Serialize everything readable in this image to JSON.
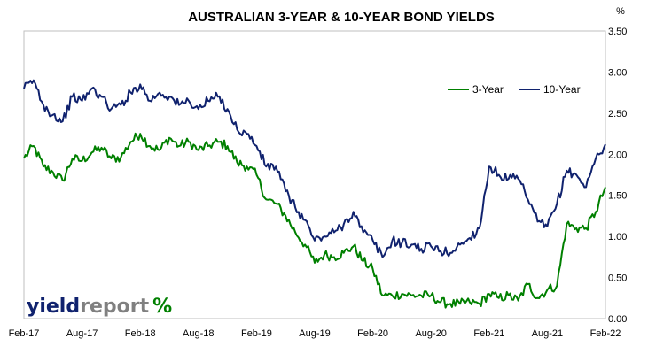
{
  "chart_data": {
    "type": "line",
    "title": "AUSTRALIAN 3-YEAR & 10-YEAR BOND YIELDS",
    "y_unit": "%",
    "ylim": [
      0,
      3.5
    ],
    "y_ticks": [
      "0.00",
      "0.50",
      "1.00",
      "1.50",
      "2.00",
      "2.50",
      "3.00",
      "3.50"
    ],
    "x_ticks": [
      "Feb-17",
      "Aug-17",
      "Feb-18",
      "Aug-18",
      "Feb-19",
      "Aug-19",
      "Feb-20",
      "Aug-20",
      "Feb-21",
      "Aug-21",
      "Feb-22"
    ],
    "xlim": [
      "2017-02",
      "2022-02"
    ],
    "grid": false,
    "legend_position": "top-right",
    "series": [
      {
        "name": "3-Year",
        "color": "#008000",
        "points": [
          [
            "2017-02",
            1.95
          ],
          [
            "2017-03",
            2.1
          ],
          [
            "2017-04",
            1.85
          ],
          [
            "2017-05",
            1.78
          ],
          [
            "2017-06",
            1.68
          ],
          [
            "2017-07",
            1.95
          ],
          [
            "2017-08",
            1.92
          ],
          [
            "2017-09",
            2.02
          ],
          [
            "2017-10",
            2.08
          ],
          [
            "2017-11",
            1.95
          ],
          [
            "2017-12",
            1.96
          ],
          [
            "2018-01",
            2.15
          ],
          [
            "2018-02",
            2.25
          ],
          [
            "2018-03",
            2.1
          ],
          [
            "2018-04",
            2.05
          ],
          [
            "2018-05",
            2.2
          ],
          [
            "2018-06",
            2.1
          ],
          [
            "2018-07",
            2.15
          ],
          [
            "2018-08",
            2.05
          ],
          [
            "2018-09",
            2.1
          ],
          [
            "2018-10",
            2.15
          ],
          [
            "2018-11",
            2.1
          ],
          [
            "2018-12",
            1.9
          ],
          [
            "2019-01",
            1.85
          ],
          [
            "2019-02",
            1.75
          ],
          [
            "2019-03",
            1.45
          ],
          [
            "2019-04",
            1.4
          ],
          [
            "2019-05",
            1.25
          ],
          [
            "2019-06",
            1.05
          ],
          [
            "2019-07",
            0.9
          ],
          [
            "2019-08",
            0.68
          ],
          [
            "2019-09",
            0.78
          ],
          [
            "2019-10",
            0.75
          ],
          [
            "2019-11",
            0.8
          ],
          [
            "2019-12",
            0.88
          ],
          [
            "2020-01",
            0.7
          ],
          [
            "2020-02",
            0.6
          ],
          [
            "2020-03",
            0.28
          ],
          [
            "2020-04",
            0.28
          ],
          [
            "2020-05",
            0.3
          ],
          [
            "2020-06",
            0.28
          ],
          [
            "2020-07",
            0.28
          ],
          [
            "2020-08",
            0.28
          ],
          [
            "2020-09",
            0.2
          ],
          [
            "2020-10",
            0.18
          ],
          [
            "2020-11",
            0.18
          ],
          [
            "2020-12",
            0.2
          ],
          [
            "2021-01",
            0.18
          ],
          [
            "2021-02",
            0.3
          ],
          [
            "2021-03",
            0.25
          ],
          [
            "2021-04",
            0.28
          ],
          [
            "2021-05",
            0.22
          ],
          [
            "2021-06",
            0.42
          ],
          [
            "2021-07",
            0.25
          ],
          [
            "2021-08",
            0.35
          ],
          [
            "2021-09",
            0.4
          ],
          [
            "2021-10",
            1.15
          ],
          [
            "2021-11",
            1.1
          ],
          [
            "2021-12",
            1.1
          ],
          [
            "2022-01",
            1.3
          ],
          [
            "2022-02",
            1.6
          ]
        ]
      },
      {
        "name": "10-Year",
        "color": "#10226E",
        "points": [
          [
            "2017-02",
            2.8
          ],
          [
            "2017-03",
            2.9
          ],
          [
            "2017-04",
            2.6
          ],
          [
            "2017-05",
            2.48
          ],
          [
            "2017-06",
            2.4
          ],
          [
            "2017-07",
            2.7
          ],
          [
            "2017-08",
            2.65
          ],
          [
            "2017-09",
            2.8
          ],
          [
            "2017-10",
            2.7
          ],
          [
            "2017-11",
            2.55
          ],
          [
            "2017-12",
            2.6
          ],
          [
            "2018-01",
            2.75
          ],
          [
            "2018-02",
            2.85
          ],
          [
            "2018-03",
            2.65
          ],
          [
            "2018-04",
            2.75
          ],
          [
            "2018-05",
            2.7
          ],
          [
            "2018-06",
            2.6
          ],
          [
            "2018-07",
            2.65
          ],
          [
            "2018-08",
            2.55
          ],
          [
            "2018-09",
            2.65
          ],
          [
            "2018-10",
            2.7
          ],
          [
            "2018-11",
            2.55
          ],
          [
            "2018-12",
            2.3
          ],
          [
            "2019-01",
            2.25
          ],
          [
            "2019-02",
            2.1
          ],
          [
            "2019-03",
            1.85
          ],
          [
            "2019-04",
            1.85
          ],
          [
            "2019-05",
            1.55
          ],
          [
            "2019-06",
            1.35
          ],
          [
            "2019-07",
            1.2
          ],
          [
            "2019-08",
            0.95
          ],
          [
            "2019-09",
            1.0
          ],
          [
            "2019-10",
            1.05
          ],
          [
            "2019-11",
            1.15
          ],
          [
            "2019-12",
            1.3
          ],
          [
            "2020-01",
            1.05
          ],
          [
            "2020-02",
            0.95
          ],
          [
            "2020-03",
            0.75
          ],
          [
            "2020-04",
            0.95
          ],
          [
            "2020-05",
            0.92
          ],
          [
            "2020-06",
            0.9
          ],
          [
            "2020-07",
            0.85
          ],
          [
            "2020-08",
            0.88
          ],
          [
            "2020-09",
            0.82
          ],
          [
            "2020-10",
            0.8
          ],
          [
            "2020-11",
            0.9
          ],
          [
            "2020-12",
            0.98
          ],
          [
            "2021-01",
            1.1
          ],
          [
            "2021-02",
            1.85
          ],
          [
            "2021-03",
            1.75
          ],
          [
            "2021-04",
            1.7
          ],
          [
            "2021-05",
            1.7
          ],
          [
            "2021-06",
            1.45
          ],
          [
            "2021-07",
            1.18
          ],
          [
            "2021-08",
            1.12
          ],
          [
            "2021-09",
            1.4
          ],
          [
            "2021-10",
            1.8
          ],
          [
            "2021-11",
            1.75
          ],
          [
            "2021-12",
            1.6
          ],
          [
            "2022-01",
            1.95
          ],
          [
            "2022-02",
            2.12
          ]
        ]
      }
    ]
  },
  "logo": {
    "word": "yield",
    "word2": "report",
    "symbol": "%"
  }
}
